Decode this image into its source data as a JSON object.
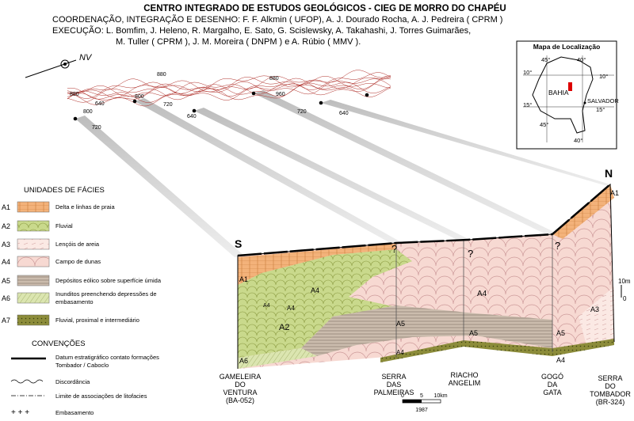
{
  "header": {
    "title": "CENTRO INTEGRADO DE ESTUDOS GEOLÓGICOS - CIEG DE MORRO DO CHAPÉU",
    "coordination": "COORDENAÇÃO, INTEGRAÇÃO E DESENHO:  F. F. Alkmin ( UFOP),  A. J. Dourado Rocha,  A. J. Pedreira ( CPRM )",
    "execution_1": "EXECUÇÃO:  L. Bomfim,  J. Heleno,  R. Margalho,  E. Sato,  G. Scislewsky,  A. Takahashi,  J. Torres Guimarães,",
    "execution_2": "M. Tuller ( CPRM ),  J. M. Moreira ( DNPM ) e  A. Rúbio ( MMV )."
  },
  "north_arrow": "NV",
  "contour_labels": [
    "880",
    "880",
    "800",
    "640",
    "800",
    "720",
    "720",
    "640",
    "880",
    "960",
    "720",
    "640"
  ],
  "location_map": {
    "title": "Mapa de Localização",
    "state": "BAHIA",
    "capital": "SALVADOR",
    "degrees": [
      "45°",
      "40°",
      "10°",
      "10°",
      "15°",
      "15°",
      "45°",
      "40°"
    ]
  },
  "legend": {
    "title": "UNIDADES DE FÁCIES",
    "items": [
      {
        "code": "A1",
        "lines": [
          "Delta e linhas de praia"
        ]
      },
      {
        "code": "A2",
        "lines": [
          "Fluvial"
        ]
      },
      {
        "code": "A3",
        "lines": [
          "Lençóis de areia"
        ]
      },
      {
        "code": "A4",
        "lines": [
          "Campo de dunas"
        ]
      },
      {
        "code": "A5",
        "lines": [
          "Depósitos eólico sobre superfície úmida"
        ]
      },
      {
        "code": "A6",
        "lines": [
          "Inunditos preenchendo depressões de",
          "embasamento"
        ]
      },
      {
        "code": "A7",
        "lines": [
          "Fluvial, proximal e intermediário"
        ]
      }
    ]
  },
  "conventions": {
    "title": "CONVENÇÕES",
    "items": [
      {
        "lines": [
          "Datum estratigráfico contato formações",
          "Tombador / Caboclo"
        ]
      },
      {
        "lines": [
          "Discordância"
        ]
      },
      {
        "lines": [
          "Limite de associações de litofacies"
        ]
      },
      {
        "symbol": "+ + +",
        "lines": [
          "Embasamento"
        ]
      }
    ]
  },
  "section": {
    "south": "S",
    "north": "N",
    "unit_labels": [
      "A1",
      "A1",
      "A4",
      "A4",
      "A4",
      "A2",
      "A5",
      "A4",
      "A6",
      "A5",
      "A4",
      "A5",
      "A3",
      "A4"
    ],
    "question_marks": [
      "?",
      "?",
      "?"
    ],
    "vertical_scale": [
      "10m",
      "0"
    ],
    "localities": [
      {
        "lines": [
          "GAMELEIRA",
          "DO",
          "VENTURA",
          "(BA-052)"
        ]
      },
      {
        "lines": [
          "SERRA",
          "DAS",
          "PALMEIRAS"
        ]
      },
      {
        "lines": [
          "RIACHO",
          "ANGELIM"
        ]
      },
      {
        "lines": [
          "GOGÓ",
          "DA",
          "GATA"
        ]
      },
      {
        "lines": [
          "SERRA",
          "DO",
          "TOMBADOR",
          "(BR-324)"
        ]
      }
    ],
    "scale_bar": {
      "ticks": [
        "0",
        "5",
        "10km"
      ],
      "year": "1987"
    }
  }
}
